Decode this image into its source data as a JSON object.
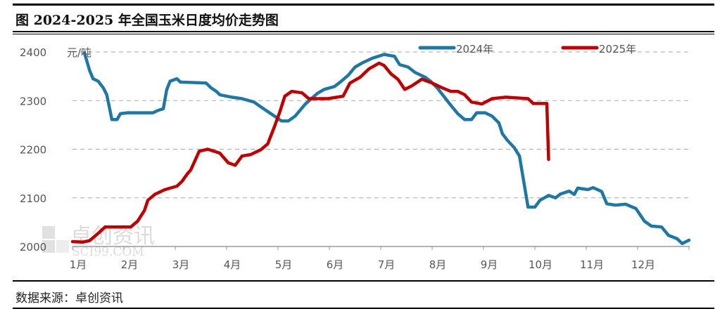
{
  "title": "图  2024-2025 年全国玉米日度均价走势图",
  "source": "数据来源：卓创资讯",
  "watermark": {
    "cn": "卓创资讯",
    "en": "SCI99.COM"
  },
  "chart_data": {
    "type": "line",
    "title": "图  2024-2025 年全国玉米日度均价走势图",
    "ylabel": "元/吨",
    "xlabel": "",
    "ylim": [
      2000,
      2400
    ],
    "yticks": [
      2000,
      2100,
      2200,
      2300,
      2400
    ],
    "xticks": [
      "1月",
      "2月",
      "3月",
      "4月",
      "5月",
      "6月",
      "7月",
      "8月",
      "9月",
      "10月",
      "11月",
      "12月"
    ],
    "grid": "horizontal dashed",
    "legend": "top-right",
    "series": [
      {
        "name": "2024年",
        "color": "#1f77a4",
        "points": [
          [
            "01-08",
            2398
          ],
          [
            "01-11",
            2362
          ],
          [
            "01-13",
            2345
          ],
          [
            "01-16",
            2340
          ],
          [
            "01-19",
            2326
          ],
          [
            "01-21",
            2312
          ],
          [
            "01-24",
            2261
          ],
          [
            "01-27",
            2261
          ],
          [
            "01-29",
            2273
          ],
          [
            "02-03",
            2275
          ],
          [
            "02-18",
            2275
          ],
          [
            "02-21",
            2280
          ],
          [
            "02-24",
            2283
          ],
          [
            "02-26",
            2322
          ],
          [
            "02-28",
            2340
          ],
          [
            "03-02",
            2345
          ],
          [
            "03-04",
            2338
          ],
          [
            "03-19",
            2336
          ],
          [
            "03-22",
            2326
          ],
          [
            "03-25",
            2319
          ],
          [
            "03-27",
            2312
          ],
          [
            "04-04",
            2307
          ],
          [
            "04-10",
            2304
          ],
          [
            "04-17",
            2297
          ],
          [
            "04-21",
            2287
          ],
          [
            "04-29",
            2268
          ],
          [
            "05-03",
            2258
          ],
          [
            "05-07",
            2258
          ],
          [
            "05-11",
            2268
          ],
          [
            "05-17",
            2293
          ],
          [
            "05-24",
            2315
          ],
          [
            "05-28",
            2323
          ],
          [
            "06-04",
            2329
          ],
          [
            "06-08",
            2340
          ],
          [
            "06-12",
            2352
          ],
          [
            "06-16",
            2369
          ],
          [
            "06-20",
            2377
          ],
          [
            "06-26",
            2387
          ],
          [
            "07-03",
            2395
          ],
          [
            "07-09",
            2391
          ],
          [
            "07-12",
            2374
          ],
          [
            "07-17",
            2369
          ],
          [
            "07-21",
            2358
          ],
          [
            "07-27",
            2348
          ],
          [
            "07-30",
            2340
          ],
          [
            "08-04",
            2326
          ],
          [
            "08-12",
            2290
          ],
          [
            "08-16",
            2273
          ],
          [
            "08-20",
            2261
          ],
          [
            "08-24",
            2261
          ],
          [
            "08-27",
            2275
          ],
          [
            "09-02",
            2275
          ],
          [
            "09-06",
            2268
          ],
          [
            "09-10",
            2254
          ],
          [
            "09-12",
            2232
          ],
          [
            "09-15",
            2218
          ],
          [
            "09-19",
            2203
          ],
          [
            "09-22",
            2186
          ],
          [
            "09-27",
            2081
          ],
          [
            "10-01",
            2081
          ],
          [
            "10-04",
            2095
          ],
          [
            "10-09",
            2105
          ],
          [
            "10-13",
            2100
          ],
          [
            "10-16",
            2108
          ],
          [
            "10-21",
            2114
          ],
          [
            "10-24",
            2107
          ],
          [
            "10-26",
            2120
          ],
          [
            "11-02",
            2117
          ],
          [
            "11-05",
            2121
          ],
          [
            "11-10",
            2113
          ],
          [
            "11-13",
            2088
          ],
          [
            "11-18",
            2085
          ],
          [
            "11-24",
            2087
          ],
          [
            "11-30",
            2078
          ],
          [
            "12-05",
            2052
          ],
          [
            "12-09",
            2042
          ],
          [
            "12-15",
            2040
          ],
          [
            "12-19",
            2023
          ],
          [
            "12-24",
            2016
          ],
          [
            "12-27",
            2006
          ],
          [
            "12-31",
            2013
          ]
        ]
      },
      {
        "name": "2025年",
        "color": "#c00000",
        "points": [
          [
            "01-01",
            2010
          ],
          [
            "01-07",
            2009
          ],
          [
            "01-11",
            2012
          ],
          [
            "01-16",
            2027
          ],
          [
            "01-20",
            2040
          ],
          [
            "02-05",
            2040
          ],
          [
            "02-09",
            2052
          ],
          [
            "02-13",
            2074
          ],
          [
            "02-15",
            2095
          ],
          [
            "02-19",
            2107
          ],
          [
            "02-25",
            2117
          ],
          [
            "03-02",
            2124
          ],
          [
            "03-05",
            2134
          ],
          [
            "03-08",
            2149
          ],
          [
            "03-10",
            2157
          ],
          [
            "03-15",
            2196
          ],
          [
            "03-20",
            2200
          ],
          [
            "03-27",
            2192
          ],
          [
            "04-02",
            2172
          ],
          [
            "04-06",
            2167
          ],
          [
            "04-10",
            2186
          ],
          [
            "04-15",
            2189
          ],
          [
            "04-21",
            2199
          ],
          [
            "04-25",
            2211
          ],
          [
            "04-29",
            2247
          ],
          [
            "05-02",
            2276
          ],
          [
            "05-05",
            2309
          ],
          [
            "05-09",
            2319
          ],
          [
            "05-15",
            2316
          ],
          [
            "05-19",
            2304
          ],
          [
            "05-30",
            2304
          ],
          [
            "06-09",
            2309
          ],
          [
            "06-13",
            2336
          ],
          [
            "06-19",
            2348
          ],
          [
            "06-24",
            2365
          ],
          [
            "06-30",
            2377
          ],
          [
            "07-03",
            2372
          ],
          [
            "07-07",
            2355
          ],
          [
            "07-11",
            2344
          ],
          [
            "07-15",
            2323
          ],
          [
            "07-19",
            2330
          ],
          [
            "07-25",
            2344
          ],
          [
            "08-01",
            2336
          ],
          [
            "08-07",
            2326
          ],
          [
            "08-12",
            2319
          ],
          [
            "08-16",
            2319
          ],
          [
            "08-20",
            2312
          ],
          [
            "08-24",
            2297
          ],
          [
            "08-30",
            2293
          ],
          [
            "09-06",
            2304
          ],
          [
            "09-14",
            2307
          ],
          [
            "09-27",
            2304
          ],
          [
            "09-30",
            2294
          ],
          [
            "10-08",
            2294
          ],
          [
            "10-09",
            2179
          ]
        ]
      }
    ]
  }
}
